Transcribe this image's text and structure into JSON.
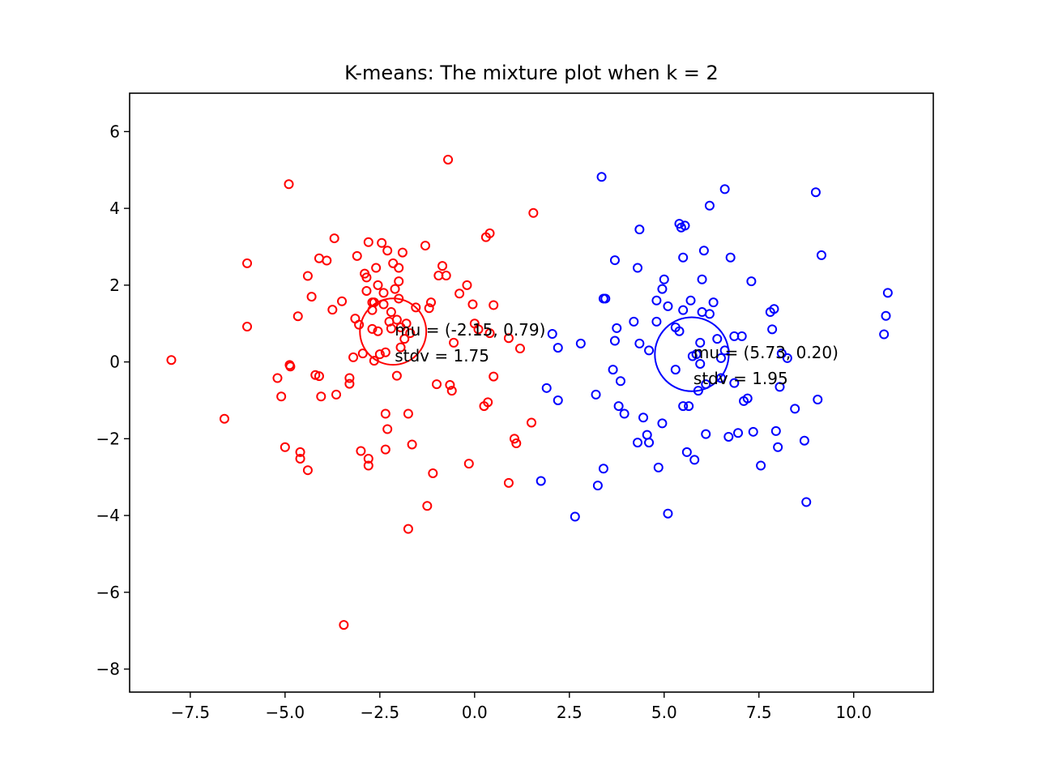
{
  "chart_data": {
    "type": "scatter",
    "title": "K-means: The mixture plot when k = 2",
    "xlabel": "",
    "ylabel": "",
    "xlim": [
      -9.1,
      12.1
    ],
    "ylim": [
      -8.6,
      7.0
    ],
    "grid": false,
    "x_ticks": [
      {
        "value": -7.5,
        "label": "−7.5"
      },
      {
        "value": -5.0,
        "label": "−5.0"
      },
      {
        "value": -2.5,
        "label": "−2.5"
      },
      {
        "value": 0.0,
        "label": "0.0"
      },
      {
        "value": 2.5,
        "label": "2.5"
      },
      {
        "value": 5.0,
        "label": "5.0"
      },
      {
        "value": 7.5,
        "label": "7.5"
      },
      {
        "value": 10.0,
        "label": "10.0"
      }
    ],
    "y_ticks": [
      {
        "value": 6,
        "label": "6"
      },
      {
        "value": 4,
        "label": "4"
      },
      {
        "value": 2,
        "label": "2"
      },
      {
        "value": 0,
        "label": "0"
      },
      {
        "value": -2,
        "label": "−2"
      },
      {
        "value": -4,
        "label": "−4"
      },
      {
        "value": -6,
        "label": "−6"
      },
      {
        "value": -8,
        "label": "−8"
      }
    ],
    "series": [
      {
        "color": "#ff0000",
        "center": [
          -2.15,
          0.79
        ],
        "stdv": 1.75,
        "annotation": [
          "mu = (-2.15, 0.79)",
          "stdv = 1.75"
        ],
        "points": [
          [
            -8.0,
            0.05
          ],
          [
            -6.6,
            -1.48
          ],
          [
            -6.0,
            2.57
          ],
          [
            -6.0,
            0.92
          ],
          [
            -5.2,
            -0.42
          ],
          [
            -5.1,
            -0.9
          ],
          [
            -5.0,
            -2.22
          ],
          [
            -4.9,
            4.63
          ],
          [
            -4.88,
            -0.08
          ],
          [
            -4.86,
            -0.12
          ],
          [
            -4.66,
            1.19
          ],
          [
            -4.6,
            -2.35
          ],
          [
            -4.6,
            -2.52
          ],
          [
            -4.4,
            2.24
          ],
          [
            -4.4,
            -2.82
          ],
          [
            -4.3,
            1.7
          ],
          [
            -4.2,
            -0.34
          ],
          [
            -4.1,
            -0.37
          ],
          [
            -4.1,
            2.7
          ],
          [
            -4.05,
            -0.9
          ],
          [
            -3.9,
            2.64
          ],
          [
            -3.75,
            1.36
          ],
          [
            -3.7,
            3.22
          ],
          [
            -3.65,
            -0.85
          ],
          [
            -3.5,
            1.58
          ],
          [
            -3.45,
            -6.85
          ],
          [
            -3.3,
            -0.57
          ],
          [
            -3.3,
            -0.42
          ],
          [
            -3.2,
            0.12
          ],
          [
            -3.15,
            1.13
          ],
          [
            -3.1,
            2.76
          ],
          [
            -3.05,
            0.97
          ],
          [
            -3.0,
            -2.32
          ],
          [
            -2.95,
            0.22
          ],
          [
            -2.9,
            2.3
          ],
          [
            -2.85,
            2.2
          ],
          [
            -2.85,
            1.85
          ],
          [
            -2.8,
            3.12
          ],
          [
            -2.8,
            -2.52
          ],
          [
            -2.8,
            -2.7
          ],
          [
            -2.7,
            1.35
          ],
          [
            -2.7,
            0.86
          ],
          [
            -2.65,
            1.55
          ],
          [
            -2.65,
            0.03
          ],
          [
            -2.6,
            2.45
          ],
          [
            -2.55,
            2.0
          ],
          [
            -2.55,
            0.8
          ],
          [
            -2.5,
            0.2
          ],
          [
            -2.45,
            3.1
          ],
          [
            -2.4,
            1.8
          ],
          [
            -2.4,
            1.5
          ],
          [
            -2.35,
            0.25
          ],
          [
            -2.35,
            -1.35
          ],
          [
            -2.35,
            -2.28
          ],
          [
            -2.3,
            2.9
          ],
          [
            -2.3,
            -1.75
          ],
          [
            -2.2,
            1.3
          ],
          [
            -2.2,
            0.87
          ],
          [
            -2.15,
            2.57
          ],
          [
            -2.1,
            1.9
          ],
          [
            -2.05,
            1.1
          ],
          [
            -2.05,
            -0.36
          ],
          [
            -2.0,
            2.45
          ],
          [
            -2.0,
            1.65
          ],
          [
            -1.95,
            0.9
          ],
          [
            -1.9,
            2.85
          ],
          [
            -1.85,
            0.6
          ],
          [
            -1.8,
            1.0
          ],
          [
            -1.75,
            -1.35
          ],
          [
            -1.75,
            -4.35
          ],
          [
            -1.7,
            0.75
          ],
          [
            -1.65,
            -2.15
          ],
          [
            -1.55,
            1.42
          ],
          [
            -1.3,
            3.03
          ],
          [
            -1.25,
            -3.75
          ],
          [
            -1.2,
            1.4
          ],
          [
            -1.15,
            1.55
          ],
          [
            -1.1,
            -2.9
          ],
          [
            -1.0,
            -0.58
          ],
          [
            -0.95,
            2.25
          ],
          [
            -0.85,
            2.5
          ],
          [
            -0.75,
            2.25
          ],
          [
            -0.7,
            5.27
          ],
          [
            -0.65,
            -0.6
          ],
          [
            -0.6,
            -0.75
          ],
          [
            -0.55,
            0.5
          ],
          [
            -0.4,
            1.78
          ],
          [
            -0.2,
            2.0
          ],
          [
            -0.15,
            -2.65
          ],
          [
            -0.05,
            1.5
          ],
          [
            0.0,
            1.0
          ],
          [
            0.1,
            0.85
          ],
          [
            0.25,
            -1.15
          ],
          [
            0.3,
            3.25
          ],
          [
            0.35,
            -1.05
          ],
          [
            0.4,
            3.35
          ],
          [
            0.4,
            0.75
          ],
          [
            0.5,
            -0.38
          ],
          [
            0.5,
            1.48
          ],
          [
            0.9,
            0.62
          ],
          [
            0.9,
            -3.15
          ],
          [
            1.05,
            -2.0
          ],
          [
            1.1,
            -2.12
          ],
          [
            1.2,
            0.35
          ],
          [
            1.5,
            -1.58
          ],
          [
            1.55,
            3.88
          ],
          [
            -2.7,
            1.55
          ],
          [
            -2.25,
            1.05
          ],
          [
            -1.95,
            0.38
          ],
          [
            -2.0,
            2.1
          ]
        ]
      },
      {
        "color": "#0000ff",
        "center": [
          5.73,
          0.2
        ],
        "stdv": 1.95,
        "annotation": [
          "mu = (5.73, 0.20)",
          "stdv = 1.95"
        ],
        "points": [
          [
            1.75,
            -3.1
          ],
          [
            1.9,
            -0.68
          ],
          [
            2.05,
            0.73
          ],
          [
            2.2,
            0.37
          ],
          [
            2.2,
            -1.0
          ],
          [
            2.65,
            -4.03
          ],
          [
            2.8,
            0.48
          ],
          [
            3.2,
            -0.85
          ],
          [
            3.25,
            -3.22
          ],
          [
            3.35,
            4.82
          ],
          [
            3.4,
            1.65
          ],
          [
            3.45,
            1.65
          ],
          [
            3.4,
            -2.78
          ],
          [
            3.65,
            -0.2
          ],
          [
            3.7,
            0.55
          ],
          [
            3.7,
            2.65
          ],
          [
            3.75,
            0.88
          ],
          [
            3.8,
            -1.15
          ],
          [
            3.85,
            -0.5
          ],
          [
            3.95,
            -1.35
          ],
          [
            4.2,
            1.05
          ],
          [
            4.3,
            -2.1
          ],
          [
            4.3,
            2.45
          ],
          [
            4.35,
            3.45
          ],
          [
            4.35,
            0.48
          ],
          [
            4.45,
            -1.45
          ],
          [
            4.55,
            -1.9
          ],
          [
            4.6,
            -2.1
          ],
          [
            4.6,
            0.3
          ],
          [
            4.8,
            1.6
          ],
          [
            4.8,
            1.05
          ],
          [
            4.85,
            -2.75
          ],
          [
            4.95,
            -1.6
          ],
          [
            5.0,
            2.15
          ],
          [
            5.1,
            -3.95
          ],
          [
            5.1,
            1.45
          ],
          [
            5.3,
            -0.2
          ],
          [
            5.4,
            3.6
          ],
          [
            5.4,
            0.8
          ],
          [
            5.45,
            3.5
          ],
          [
            5.5,
            1.35
          ],
          [
            5.5,
            -1.15
          ],
          [
            5.5,
            2.72
          ],
          [
            5.55,
            3.55
          ],
          [
            5.6,
            -2.35
          ],
          [
            5.65,
            -1.15
          ],
          [
            5.7,
            1.6
          ],
          [
            5.75,
            0.15
          ],
          [
            5.8,
            -2.55
          ],
          [
            5.85,
            0.2
          ],
          [
            5.9,
            -0.75
          ],
          [
            5.95,
            -0.05
          ],
          [
            6.0,
            1.3
          ],
          [
            6.0,
            2.15
          ],
          [
            6.05,
            2.9
          ],
          [
            6.1,
            -1.88
          ],
          [
            6.1,
            -0.58
          ],
          [
            6.2,
            1.25
          ],
          [
            6.2,
            4.07
          ],
          [
            6.3,
            1.55
          ],
          [
            6.4,
            0.6
          ],
          [
            6.5,
            -0.42
          ],
          [
            6.6,
            4.5
          ],
          [
            6.6,
            0.3
          ],
          [
            6.7,
            -1.95
          ],
          [
            6.75,
            2.72
          ],
          [
            6.85,
            -0.55
          ],
          [
            6.85,
            0.67
          ],
          [
            6.95,
            -1.85
          ],
          [
            7.05,
            0.67
          ],
          [
            7.1,
            -1.02
          ],
          [
            7.2,
            -0.95
          ],
          [
            7.3,
            2.1
          ],
          [
            7.35,
            -1.82
          ],
          [
            7.55,
            -2.7
          ],
          [
            7.8,
            1.3
          ],
          [
            7.9,
            1.38
          ],
          [
            7.95,
            -1.8
          ],
          [
            8.0,
            -2.22
          ],
          [
            8.05,
            -0.65
          ],
          [
            8.1,
            0.22
          ],
          [
            8.25,
            0.1
          ],
          [
            8.45,
            -1.22
          ],
          [
            8.7,
            -2.05
          ],
          [
            8.75,
            -3.65
          ],
          [
            9.0,
            4.42
          ],
          [
            9.05,
            -0.98
          ],
          [
            9.15,
            2.78
          ],
          [
            10.8,
            0.72
          ],
          [
            10.85,
            1.2
          ],
          [
            10.9,
            1.8
          ],
          [
            7.85,
            0.85
          ],
          [
            6.5,
            0.1
          ],
          [
            5.95,
            0.5
          ],
          [
            5.3,
            0.9
          ],
          [
            4.95,
            1.9
          ]
        ]
      }
    ]
  }
}
